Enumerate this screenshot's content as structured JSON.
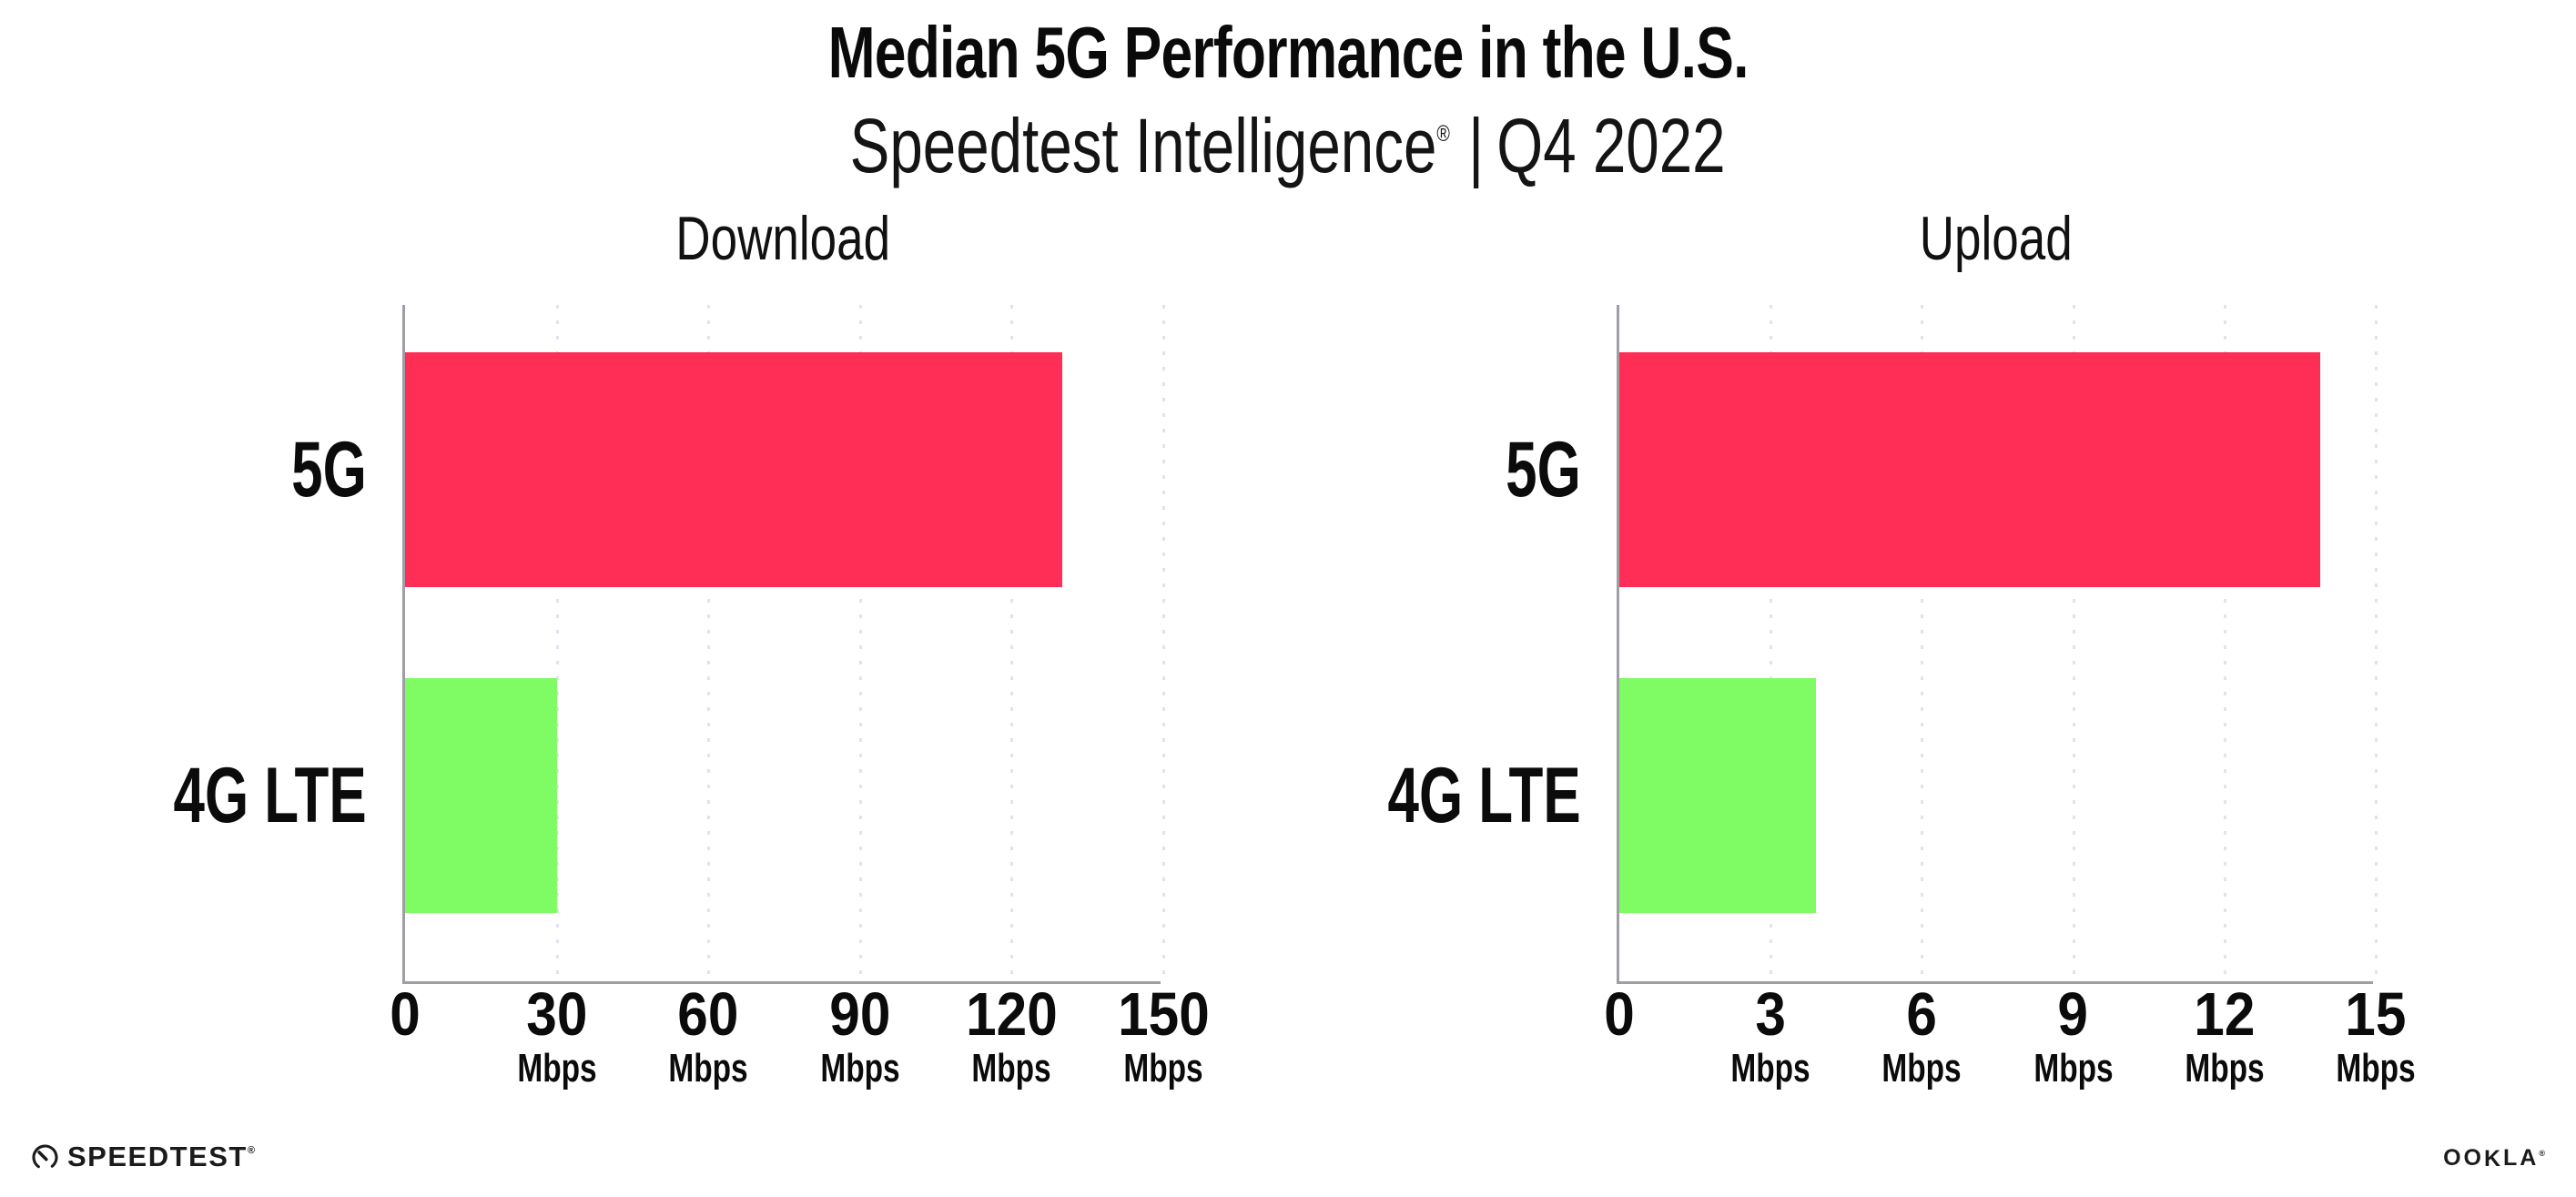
{
  "header": {
    "title": "Median 5G Performance in the U.S.",
    "subtitle_brand": "Speedtest Intelligence",
    "subtitle_reg": "®",
    "subtitle_separator": "|",
    "subtitle_period": "Q4 2022"
  },
  "chart_data": [
    {
      "type": "bar",
      "orientation": "horizontal",
      "title": "Download",
      "categories": [
        "5G",
        "4G LTE"
      ],
      "values": [
        130,
        30
      ],
      "unit": "Mbps",
      "xlim": [
        0,
        150
      ],
      "xticks": [
        0,
        30,
        60,
        90,
        120,
        150
      ],
      "series_colors": [
        "#fe2e56",
        "#7ffb63"
      ],
      "grid": "dotted-vertical",
      "legend": "none"
    },
    {
      "type": "bar",
      "orientation": "horizontal",
      "title": "Upload",
      "categories": [
        "5G",
        "4G LTE"
      ],
      "values": [
        13.9,
        3.9
      ],
      "unit": "Mbps",
      "xlim": [
        0,
        15
      ],
      "xticks": [
        0,
        3,
        6,
        9,
        12,
        15
      ],
      "series_colors": [
        "#fe2e56",
        "#7ffb63"
      ],
      "grid": "dotted-vertical",
      "legend": "none"
    }
  ],
  "footer": {
    "speedtest_label": "SPEEDTEST",
    "speedtest_reg": "®",
    "ookla_label_left": "OO",
    "ookla_label_k": "K",
    "ookla_label_right": "LA",
    "ookla_reg": "®"
  },
  "colors": {
    "bar_5g": "#fe2e56",
    "bar_4g_lte": "#7ffb63",
    "gridline": "#e2e2ef",
    "axis": "#9e9ea4",
    "text": "#0b0b0b"
  }
}
